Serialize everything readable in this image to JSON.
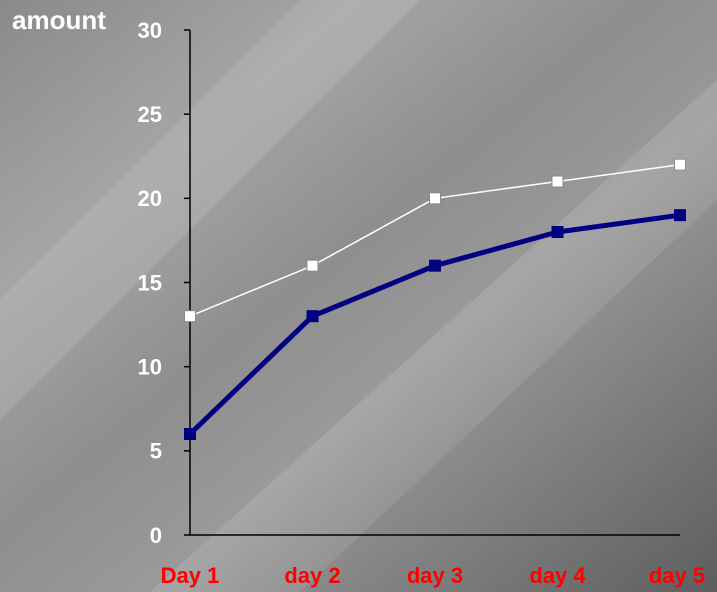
{
  "chart_data": {
    "type": "line",
    "y_label": "amount",
    "categories": [
      "Day 1",
      "day 2",
      "day 3",
      "day 4",
      "day 5"
    ],
    "series": [
      {
        "color": "#ffffff",
        "values": [
          13,
          16,
          20,
          21,
          22
        ]
      },
      {
        "color": "#000080",
        "values": [
          6,
          13,
          16,
          18,
          19
        ]
      }
    ],
    "ylim": [
      0,
      30
    ],
    "yticks": [
      0,
      5,
      10,
      15,
      20,
      25,
      30
    ],
    "category_color": "#ff0000"
  }
}
